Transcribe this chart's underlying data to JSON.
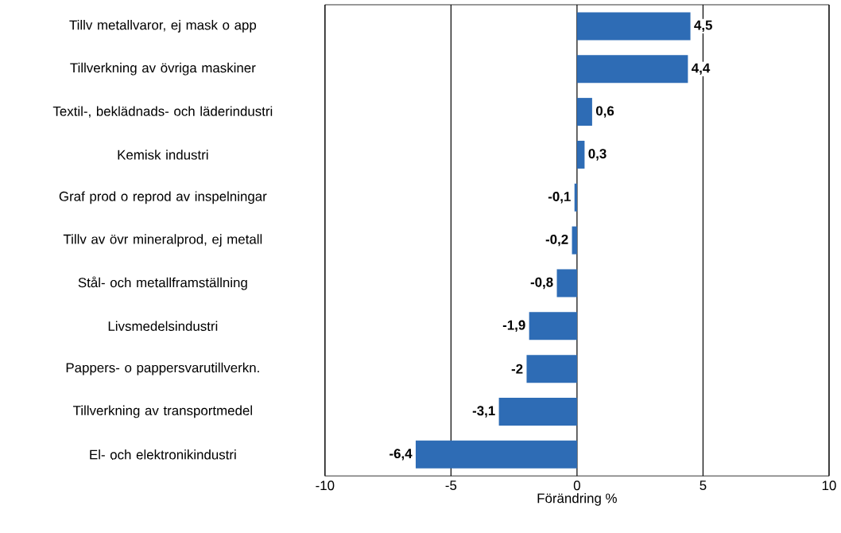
{
  "chart_data": {
    "type": "bar",
    "orientation": "horizontal",
    "xlabel": "Förändring %",
    "categories": [
      "Tillv metallvaror, ej mask o app",
      "Tillverkning av övriga maskiner",
      "Textil-, beklädnads- och läderindustri",
      "Kemisk industri",
      "Graf prod o reprod av inspelningar",
      "Tillv av övr mineralprod, ej metall",
      "Stål- och metallframställning",
      "Livsmedelsindustri",
      "Pappers- o pappersvarutillverkn.",
      "Tillverkning av transportmedel",
      "El- och elektronikindustri"
    ],
    "values": [
      4.5,
      4.4,
      0.6,
      0.3,
      -0.1,
      -0.2,
      -0.8,
      -1.9,
      -2,
      -3.1,
      -6.4
    ],
    "value_labels": [
      "4,5",
      "4,4",
      "0,6",
      "0,3",
      "-0,1",
      "-0,2",
      "-0,8",
      "-1,9",
      "-2",
      "-3,1",
      "-6,4"
    ],
    "color": "#2e6cb5",
    "xlim": [
      -10,
      10
    ],
    "xticks": [
      -10,
      -5,
      0,
      5,
      10
    ],
    "grid": "x"
  }
}
